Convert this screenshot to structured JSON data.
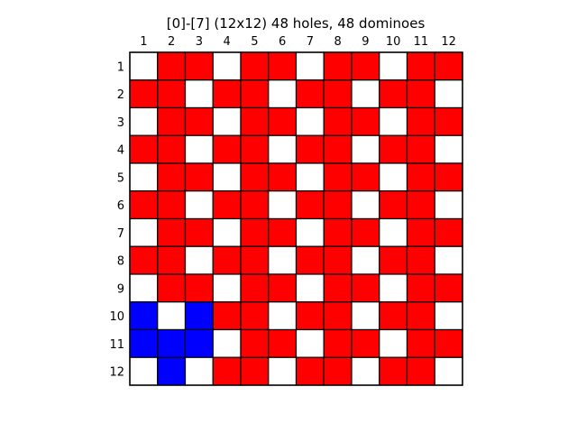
{
  "title": "[0]-[7]  (12x12) 48 holes, 48 dominoes",
  "board": {
    "rows": 12,
    "cols": 12,
    "col_labels": [
      "1",
      "2",
      "3",
      "4",
      "5",
      "6",
      "7",
      "8",
      "9",
      "10",
      "11",
      "12"
    ],
    "row_labels": [
      "1",
      "2",
      "3",
      "4",
      "5",
      "6",
      "7",
      "8",
      "9",
      "10",
      "11",
      "12"
    ],
    "legend_codes": {
      "W": "empty",
      "R": "domino",
      "B": "blue-piece"
    },
    "colors": {
      "empty": "#ffffff",
      "domino": "#ff0000",
      "blue-piece": "#0000ff",
      "grid": "#000000"
    },
    "cells": [
      "WRRWRRWRRWRR",
      "RRWRRWRRWRRW",
      "WRRWRRWRRWRR",
      "RRWRRWRRWRRW",
      "WRRWRRWRRWRR",
      "RRWRRWRRWRRW",
      "WRRWRRWRRWRR",
      "RRWRRWRRWRRW",
      "WRRWRRWRRWRR",
      "BWBRRWRRWRRW",
      "BBBWRRWRRWRR",
      "WBWRRWRRWRRW"
    ]
  }
}
